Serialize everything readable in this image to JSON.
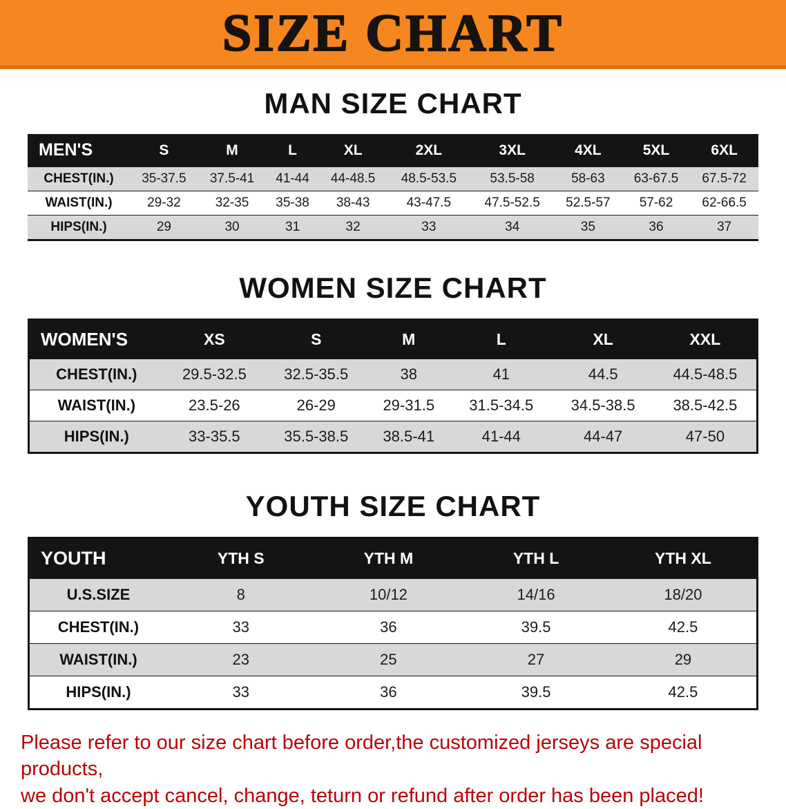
{
  "banner": {
    "title": "SIZE CHART",
    "bg_color": "#F6861E"
  },
  "men": {
    "heading": "MAN SIZE CHART",
    "table": {
      "header": [
        "MEN'S",
        "S",
        "M",
        "L",
        "XL",
        "2XL",
        "3XL",
        "4XL",
        "5XL",
        "6XL"
      ],
      "rows": [
        {
          "label": "CHEST(IN.)",
          "values": [
            "35-37.5",
            "37.5-41",
            "41-44",
            "44-48.5",
            "48.5-53.5",
            "53.5-58",
            "58-63",
            "63-67.5",
            "67.5-72"
          ]
        },
        {
          "label": "WAIST(IN.)",
          "values": [
            "29-32",
            "32-35",
            "35-38",
            "38-43",
            "43-47.5",
            "47.5-52.5",
            "52.5-57",
            "57-62",
            "62-66.5"
          ]
        },
        {
          "label": "HIPS(IN.)",
          "values": [
            "29",
            "30",
            "31",
            "32",
            "33",
            "34",
            "35",
            "36",
            "37"
          ]
        }
      ]
    }
  },
  "women": {
    "heading": "WOMEN SIZE CHART",
    "table": {
      "header": [
        "WOMEN'S",
        "XS",
        "S",
        "M",
        "L",
        "XL",
        "XXL"
      ],
      "rows": [
        {
          "label": "CHEST(IN.)",
          "values": [
            "29.5-32.5",
            "32.5-35.5",
            "38",
            "41",
            "44.5",
            "44.5-48.5"
          ]
        },
        {
          "label": "WAIST(IN.)",
          "values": [
            "23.5-26",
            "26-29",
            "29-31.5",
            "31.5-34.5",
            "34.5-38.5",
            "38.5-42.5"
          ]
        },
        {
          "label": "HIPS(IN.)",
          "values": [
            "33-35.5",
            "35.5-38.5",
            "38.5-41",
            "41-44",
            "44-47",
            "47-50"
          ]
        }
      ]
    }
  },
  "youth": {
    "heading": "YOUTH SIZE CHART",
    "table": {
      "header": [
        "YOUTH",
        "YTH S",
        "YTH M",
        "YTH L",
        "YTH XL"
      ],
      "rows": [
        {
          "label": "U.S.SIZE",
          "values": [
            "8",
            "10/12",
            "14/16",
            "18/20"
          ]
        },
        {
          "label": "CHEST(IN.)",
          "values": [
            "33",
            "36",
            "39.5",
            "42.5"
          ]
        },
        {
          "label": "WAIST(IN.)",
          "values": [
            "23",
            "25",
            "27",
            "29"
          ]
        },
        {
          "label": "HIPS(IN.)",
          "values": [
            "33",
            "36",
            "39.5",
            "42.5"
          ]
        }
      ]
    }
  },
  "footer": {
    "line1": "Please refer to our size chart before order,the customized jerseys are special products,",
    "line2": "we don't accept cancel, change, teturn or refund after order has been placed!",
    "text_color": "#BB0303"
  }
}
